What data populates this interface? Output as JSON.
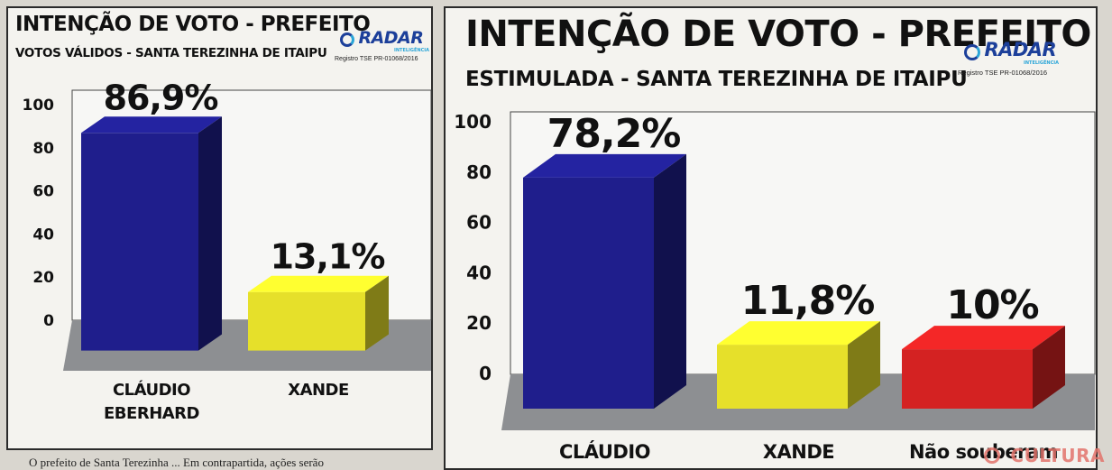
{
  "charts": [
    {
      "title": "INTENÇÃO DE VOTO - PREFEITO",
      "subtitle": "VOTOS VÁLIDOS - SANTA TEREZINHA DE ITAIPU",
      "logo": "RADAR",
      "logo_sub": "INTELIGÊNCIA",
      "registro": "Registro TSE PR-01068/2016"
    },
    {
      "title": "INTENÇÃO DE VOTO - PREFEITO",
      "subtitle": "ESTIMULADA - SANTA TEREZINHA DE ITAIPU",
      "logo": "RADAR",
      "logo_sub": "INTELIGÊNCIA",
      "registro": "Registro TSE PR-01068/2016"
    }
  ],
  "chart_data": [
    {
      "type": "bar",
      "title": "INTENÇÃO DE VOTO - PREFEITO",
      "subtitle": "VOTOS VÁLIDOS - SANTA TEREZINHA DE ITAIPU",
      "categories": [
        "CLÁUDIO EBERHARD",
        "XANDE"
      ],
      "category_lines": [
        [
          "CLÁUDIO",
          "EBERHARD"
        ],
        [
          "XANDE"
        ]
      ],
      "values": [
        86.9,
        13.1
      ],
      "value_labels": [
        "86,9%",
        "13,1%"
      ],
      "colors": [
        "#1f1e8c",
        "#e6e02a"
      ],
      "ylim": [
        0,
        100
      ],
      "yticks": [
        "0",
        "20",
        "40",
        "60",
        "80",
        "100"
      ],
      "ytick_values": [
        0,
        20,
        40,
        60,
        80,
        100
      ]
    },
    {
      "type": "bar",
      "title": "INTENÇÃO DE VOTO - PREFEITO",
      "subtitle": "ESTIMULADA - SANTA TEREZINHA DE ITAIPU",
      "categories": [
        "CLÁUDIO",
        "XANDE",
        "Não souberam"
      ],
      "category_lines": [
        [
          "CLÁUDIO"
        ],
        [
          "XANDE"
        ],
        [
          "Não souberam"
        ]
      ],
      "values": [
        78.2,
        11.8,
        10
      ],
      "value_labels": [
        "78,2%",
        "11,8%",
        "10%"
      ],
      "colors": [
        "#1f1e8c",
        "#e6e02a",
        "#d42222"
      ],
      "ylim": [
        0,
        100
      ],
      "yticks": [
        "0",
        "20",
        "40",
        "60",
        "80",
        "100"
      ],
      "ytick_values": [
        0,
        20,
        40,
        60,
        80,
        100
      ]
    }
  ],
  "footer": {
    "caption": "O prefeito de Santa Terezinha ...   Em contrapartida, ações serão"
  },
  "watermark": "CULTURA"
}
